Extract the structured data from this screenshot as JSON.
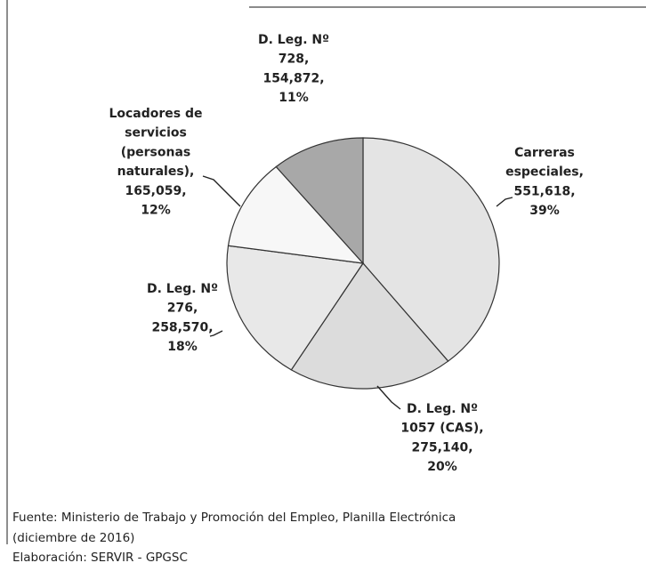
{
  "chart_data": {
    "type": "pie",
    "values": [
      551618,
      275140,
      258570,
      165059,
      154872
    ],
    "labels": [
      [
        "Carreras",
        "especiales,",
        "551,618,",
        "39%"
      ],
      [
        "D. Leg. Nº",
        "1057 (CAS),",
        "275,140,",
        "20%"
      ],
      [
        "D. Leg. Nº",
        "276,",
        "258,570,",
        "18%"
      ],
      [
        "Locadores de",
        "servicios",
        "(personas",
        "naturales),",
        "165,059,",
        "12%"
      ],
      [
        "D. Leg. Nº",
        "728,",
        "154,872,",
        "11%"
      ]
    ],
    "colors": [
      "#e4e4e4",
      "#dcdcdc",
      "#e8e8e8",
      "#f7f7f7",
      "#a8a8a8"
    ],
    "notes": [
      "Fuente: Ministerio de Trabajo y Promoción del Empleo, Planilla Electrónica",
      "(diciembre de 2016)",
      "Elaboración: SERVIR - GPGSC"
    ]
  }
}
